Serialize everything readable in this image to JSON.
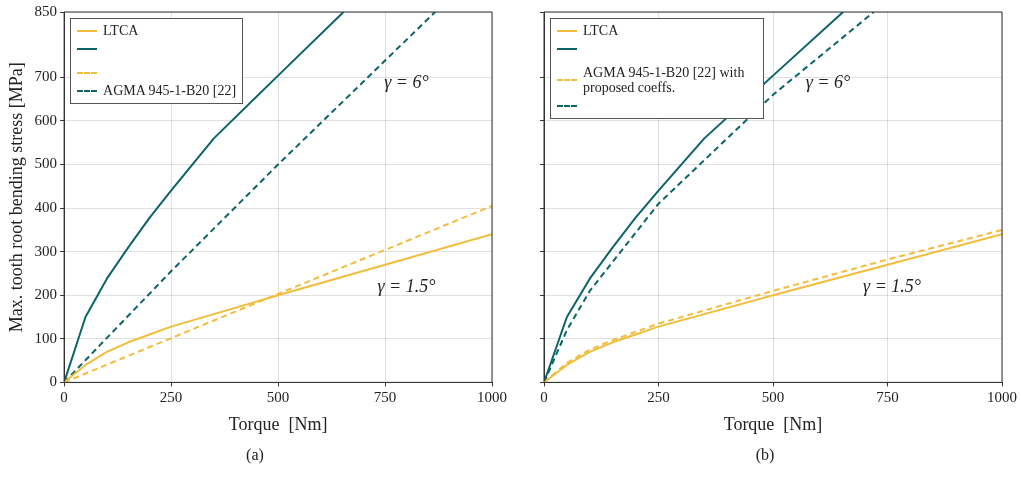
{
  "chart_data": [
    {
      "type": "line",
      "xlabel": "Torque  [Nm]",
      "ylabel": "Max. tooth root bending stress [MPa]",
      "xlim": [
        0,
        1000
      ],
      "ylim": [
        0,
        850
      ],
      "xticks": [
        0,
        250,
        500,
        750,
        1000
      ],
      "yticks": [
        0,
        100,
        200,
        300,
        400,
        500,
        600,
        700,
        850
      ],
      "grid": true,
      "legend": "top left",
      "marker": "none",
      "series": [
        {
          "name": "LTCA",
          "color": "#f2bd3c",
          "line_style": "solid",
          "x": [
            0,
            50,
            100,
            150,
            200,
            250,
            500,
            750,
            1000
          ],
          "values": [
            0,
            40,
            70,
            92,
            110,
            128,
            200,
            270,
            340
          ]
        },
        {
          "color": "#0b6468",
          "line_style": "solid",
          "x": [
            0,
            50,
            100,
            150,
            200,
            250,
            350,
            500,
            653
          ],
          "values": [
            0,
            150,
            238,
            310,
            378,
            440,
            560,
            704,
            850
          ]
        },
        {
          "color": "#f2bd3c",
          "line_style": "dashed",
          "x": [
            0,
            500,
            1000
          ],
          "values": [
            0,
            203,
            405
          ]
        },
        {
          "name": "AGMA 945-1-B20 [22]",
          "color": "#0b6468",
          "line_style": "dashed",
          "x": [
            0,
            250,
            500,
            867
          ],
          "values": [
            0,
            255,
            500,
            850
          ]
        }
      ],
      "annotations": [
        "γ = 6°",
        "γ = 1.5°",
        "(a)"
      ]
    },
    {
      "type": "line",
      "xlabel": "Torque  [Nm]",
      "xlim": [
        0,
        1000
      ],
      "ylim": [
        0,
        850
      ],
      "xticks": [
        0,
        250,
        500,
        750,
        1000
      ],
      "yticks": [
        0,
        100,
        200,
        300,
        400,
        500,
        600,
        700,
        850
      ],
      "grid": true,
      "legend": "top left",
      "marker": "none",
      "tick_labels": "x",
      "series": [
        {
          "name": "LTCA",
          "color": "#f2bd3c",
          "line_style": "solid",
          "x": [
            0,
            50,
            100,
            150,
            200,
            250,
            500,
            750,
            1000
          ],
          "values": [
            0,
            40,
            70,
            92,
            110,
            128,
            200,
            270,
            340
          ]
        },
        {
          "color": "#0b6468",
          "line_style": "solid",
          "x": [
            0,
            50,
            100,
            150,
            200,
            250,
            350,
            500,
            653
          ],
          "values": [
            0,
            150,
            238,
            310,
            378,
            440,
            560,
            704,
            850
          ]
        },
        {
          "name": "AGMA 945-1-B20 [22] with proposed coeffs.",
          "color": "#f2bd3c",
          "line_style": "dashed",
          "x": [
            0,
            50,
            100,
            150,
            250,
            500,
            750,
            1000
          ],
          "values": [
            0,
            45,
            75,
            97,
            135,
            210,
            282,
            350
          ]
        },
        {
          "color": "#0b6468",
          "line_style": "dashed",
          "x": [
            0,
            50,
            100,
            250,
            500,
            720
          ],
          "values": [
            0,
            120,
            210,
            410,
            660,
            850
          ]
        }
      ],
      "annotations": [
        "γ = 6°",
        "γ = 1.5°",
        "(b)"
      ]
    }
  ]
}
